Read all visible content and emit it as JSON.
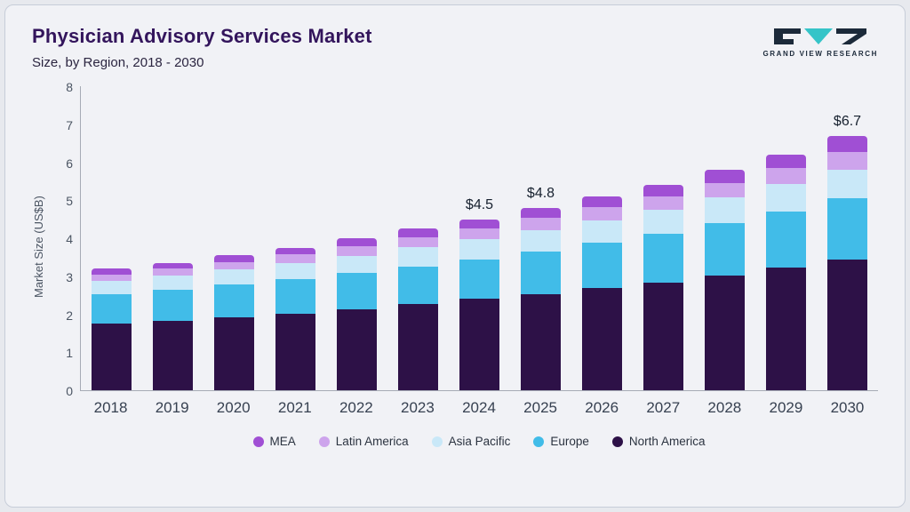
{
  "header": {
    "title": "Physician Advisory Services Market",
    "subtitle": "Size, by Region, 2018 - 2030",
    "logo_text": "GRAND VIEW RESEARCH"
  },
  "colors": {
    "title": "#33155c",
    "logo_teal": "#35c4c8",
    "logo_dark": "#1c2a3a",
    "card_background": "#f1f2f6",
    "axis_line": "#a6abb5"
  },
  "chart_data": {
    "type": "bar",
    "stacked": true,
    "title": "Physician Advisory Services Market",
    "subtitle": "Size, by Region, 2018 - 2030",
    "xlabel": "",
    "ylabel": "Market Size (US$B)",
    "ylim": [
      0,
      8
    ],
    "yticks": [
      0,
      1,
      2,
      3,
      4,
      5,
      6,
      7,
      8
    ],
    "grid": false,
    "legend_position": "bottom",
    "categories": [
      "2018",
      "2019",
      "2020",
      "2021",
      "2022",
      "2023",
      "2024",
      "2025",
      "2026",
      "2027",
      "2028",
      "2029",
      "2030"
    ],
    "series": [
      {
        "name": "North America",
        "color": "#2d1147",
        "values": [
          1.75,
          1.83,
          1.93,
          2.02,
          2.13,
          2.26,
          2.4,
          2.53,
          2.68,
          2.84,
          3.02,
          3.23,
          3.45
        ]
      },
      {
        "name": "Europe",
        "color": "#41bce8",
        "values": [
          0.78,
          0.82,
          0.85,
          0.9,
          0.95,
          1.0,
          1.05,
          1.12,
          1.2,
          1.28,
          1.38,
          1.48,
          1.6
        ]
      },
      {
        "name": "Asia Pacific",
        "color": "#c9e8f8",
        "values": [
          0.35,
          0.37,
          0.4,
          0.43,
          0.46,
          0.5,
          0.52,
          0.57,
          0.6,
          0.63,
          0.68,
          0.72,
          0.75
        ]
      },
      {
        "name": "Latin America",
        "color": "#cda4ec",
        "values": [
          0.17,
          0.18,
          0.2,
          0.22,
          0.25,
          0.27,
          0.28,
          0.31,
          0.33,
          0.35,
          0.38,
          0.41,
          0.48
        ]
      },
      {
        "name": "MEA",
        "color": "#a04fd4",
        "values": [
          0.15,
          0.15,
          0.17,
          0.18,
          0.21,
          0.22,
          0.25,
          0.27,
          0.29,
          0.3,
          0.34,
          0.36,
          0.42
        ]
      }
    ],
    "annotations": [
      {
        "category": "2024",
        "text": "$4.5"
      },
      {
        "category": "2025",
        "text": "$4.8"
      },
      {
        "category": "2030",
        "text": "$6.7"
      }
    ],
    "legend_order": [
      "MEA",
      "Latin America",
      "Asia Pacific",
      "Europe",
      "North America"
    ]
  }
}
